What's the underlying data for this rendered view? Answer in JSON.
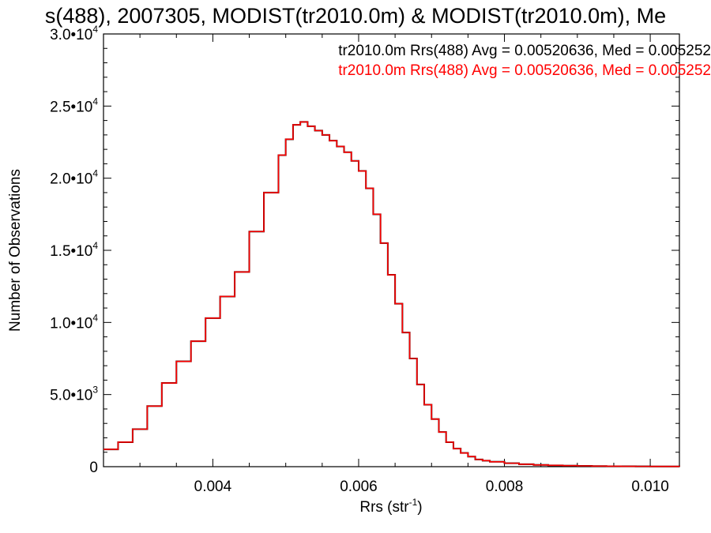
{
  "chart_data": {
    "type": "line",
    "title": "s(488), 2007305, MODIST(tr2010.0m) & MODIST(tr2010.0m), Me",
    "xlabel": "Rrs (str",
    "xlabel_sup": "-1",
    "xlabel_end": ")",
    "ylabel": "Number of Observations",
    "xlim": [
      0.0025,
      0.0104
    ],
    "ylim": [
      0,
      30000
    ],
    "x_ticks": [
      {
        "value": 0.004,
        "label": "0.004"
      },
      {
        "value": 0.006,
        "label": "0.006"
      },
      {
        "value": 0.008,
        "label": "0.008"
      },
      {
        "value": 0.01,
        "label": "0.010"
      }
    ],
    "y_ticks": [
      {
        "value": 0,
        "mantissa": "0",
        "exp": ""
      },
      {
        "value": 5000,
        "mantissa": "5.0•10",
        "exp": "3"
      },
      {
        "value": 10000,
        "mantissa": "1.0•10",
        "exp": "4"
      },
      {
        "value": 15000,
        "mantissa": "1.5•10",
        "exp": "4"
      },
      {
        "value": 20000,
        "mantissa": "2.0•10",
        "exp": "4"
      },
      {
        "value": 25000,
        "mantissa": "2.5•10",
        "exp": "4"
      },
      {
        "value": 30000,
        "mantissa": "3.0•10",
        "exp": "4"
      }
    ],
    "legend_placement": "top-right",
    "series": [
      {
        "name": "tr2010.0m Rrs(488) Avg = 0.00520636, Med = 0.005252",
        "color": "#000000",
        "x": [
          0.0025,
          0.0027,
          0.0029,
          0.0031,
          0.0033,
          0.0035,
          0.0037,
          0.0039,
          0.0041,
          0.0043,
          0.0045,
          0.0047,
          0.0049,
          0.005,
          0.0051,
          0.0052,
          0.0053,
          0.0054,
          0.0055,
          0.0056,
          0.0057,
          0.0058,
          0.0059,
          0.006,
          0.0061,
          0.0062,
          0.0063,
          0.0064,
          0.0065,
          0.0066,
          0.0067,
          0.0068,
          0.0069,
          0.007,
          0.0071,
          0.0072,
          0.0073,
          0.0074,
          0.0075,
          0.0076,
          0.0077,
          0.0078,
          0.008,
          0.0082,
          0.0084,
          0.0086,
          0.0088,
          0.009,
          0.0092,
          0.0094,
          0.0096,
          0.0098,
          0.01,
          0.0104
        ],
        "y": [
          1200,
          1700,
          2600,
          4200,
          5800,
          7300,
          8700,
          10300,
          11800,
          13500,
          16300,
          19000,
          21600,
          22700,
          23700,
          23900,
          23600,
          23300,
          23000,
          22600,
          22200,
          21800,
          21200,
          20500,
          19300,
          17500,
          15500,
          13300,
          11300,
          9300,
          7500,
          5700,
          4300,
          3300,
          2400,
          1700,
          1250,
          950,
          700,
          500,
          420,
          340,
          240,
          170,
          120,
          90,
          70,
          55,
          40,
          30,
          25,
          20,
          15,
          10
        ]
      },
      {
        "name": "tr2010.0m Rrs(488) Avg = 0.00520636, Med = 0.005252",
        "color": "#ff0000",
        "x": [
          0.0025,
          0.0027,
          0.0029,
          0.0031,
          0.0033,
          0.0035,
          0.0037,
          0.0039,
          0.0041,
          0.0043,
          0.0045,
          0.0047,
          0.0049,
          0.005,
          0.0051,
          0.0052,
          0.0053,
          0.0054,
          0.0055,
          0.0056,
          0.0057,
          0.0058,
          0.0059,
          0.006,
          0.0061,
          0.0062,
          0.0063,
          0.0064,
          0.0065,
          0.0066,
          0.0067,
          0.0068,
          0.0069,
          0.007,
          0.0071,
          0.0072,
          0.0073,
          0.0074,
          0.0075,
          0.0076,
          0.0077,
          0.0078,
          0.008,
          0.0082,
          0.0084,
          0.0086,
          0.0088,
          0.009,
          0.0092,
          0.0094,
          0.0096,
          0.0098,
          0.01,
          0.0104
        ],
        "y": [
          1200,
          1700,
          2600,
          4200,
          5800,
          7300,
          8700,
          10300,
          11800,
          13500,
          16300,
          19000,
          21600,
          22700,
          23700,
          23900,
          23600,
          23300,
          23000,
          22600,
          22200,
          21800,
          21200,
          20500,
          19300,
          17500,
          15500,
          13300,
          11300,
          9300,
          7500,
          5700,
          4300,
          3300,
          2400,
          1700,
          1250,
          950,
          700,
          500,
          420,
          340,
          240,
          170,
          120,
          90,
          70,
          55,
          40,
          30,
          25,
          20,
          15,
          10
        ]
      }
    ]
  }
}
